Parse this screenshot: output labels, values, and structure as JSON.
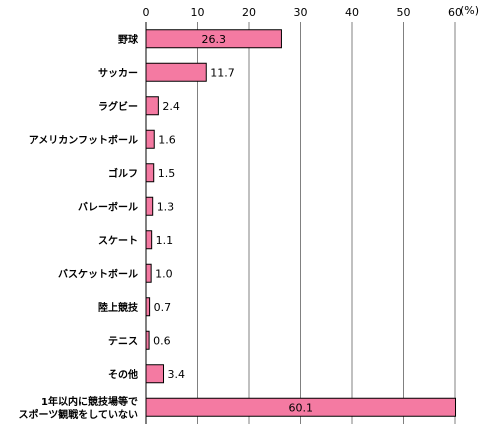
{
  "chart_data": {
    "type": "bar",
    "orientation": "horizontal",
    "unit_label": "(%)",
    "xlim": [
      0,
      60
    ],
    "xticks": [
      0,
      10,
      20,
      30,
      40,
      50,
      60
    ],
    "categories": [
      [
        "野球"
      ],
      [
        "サッカー"
      ],
      [
        "ラグビー"
      ],
      [
        "アメリカンフットボール"
      ],
      [
        "ゴルフ"
      ],
      [
        "バレーボール"
      ],
      [
        "スケート"
      ],
      [
        "バスケットボール"
      ],
      [
        "陸上競技"
      ],
      [
        "テニス"
      ],
      [
        "その他"
      ],
      [
        "1年以内に競技場等で",
        "スポーツ観戦をしていない"
      ]
    ],
    "values": [
      26.3,
      11.7,
      2.4,
      1.6,
      1.5,
      1.3,
      1.1,
      1.0,
      0.7,
      0.6,
      3.4,
      60.1
    ],
    "data_labels": [
      "26.3",
      "11.7",
      "2.4",
      "1.6",
      "1.5",
      "1.3",
      "1.1",
      "1.0",
      "0.7",
      "0.6",
      "3.4",
      "60.1"
    ],
    "bar_color": "#f47aa2",
    "bar_border": "#000000",
    "gridlines": true,
    "legend": "none"
  }
}
